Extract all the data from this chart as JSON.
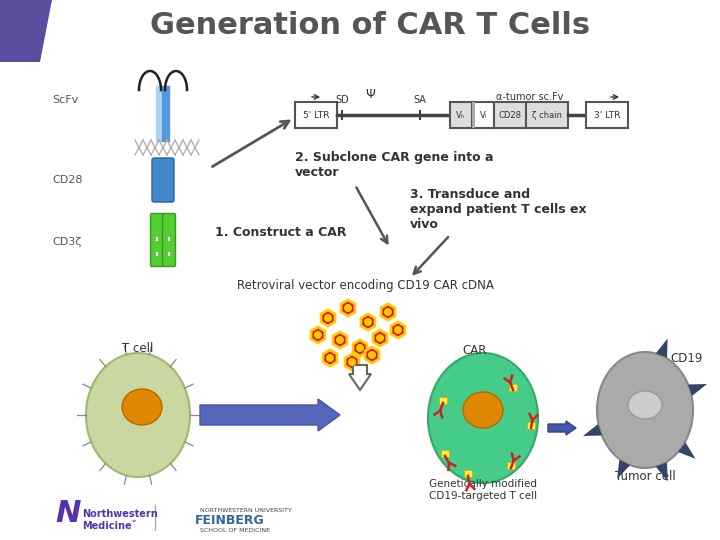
{
  "title": "Generation of CAR T Cells",
  "title_color": "#555555",
  "title_fontsize": 22,
  "background_color": "#ffffff",
  "retroviral_label": "Retroviral vector encoding CD19 CAR cDNA",
  "step1_label": "1. Construct a CAR",
  "step2_label": "2. Subclone CAR gene into a\nvector",
  "step3_label": "3. Transduce and\nexpand patient T cells ex\nvivo",
  "tcell_label": "T cell",
  "car_label": "CAR",
  "cd19_label": "CD19",
  "genmod_label": "Genetically modified\nCD19-targeted T cell",
  "tumorcell_label": "Tumor cell",
  "scfv_label": "ScFv",
  "cd28_label": "CD28",
  "cd3z_label": "CD3ζ",
  "psi_label": "Ψ",
  "antitumor_label": "α-tumor sc.Fv",
  "ltr5_label": "5' LTR",
  "ltr3_label": "3' LTR",
  "sd_label": "SD",
  "sa_label": "SA",
  "vh_label": "Vₕ",
  "vl_label": "Vₗ",
  "cd28box_label": "CD28",
  "zchain_label": "ζ chain",
  "purple_color": "#5a4f9f",
  "car_receptor_color": "#cc2222",
  "car_inner_color": "#ffee44",
  "tcell_fill": "#c8d8a0",
  "tcell_edge": "#a0b870",
  "nucleus_fill": "#dd8800",
  "modcell_fill": "#44cc88",
  "modcell_edge": "#33aa66",
  "tumor_fill": "#aaaaaa",
  "tumor_edge": "#888888",
  "tumor_nucleus": "#cccccc",
  "spike_color": "#334466",
  "arrow_color": "#5566bb",
  "virus_red": "#dd1111",
  "virus_yellow": "#ffcc00"
}
